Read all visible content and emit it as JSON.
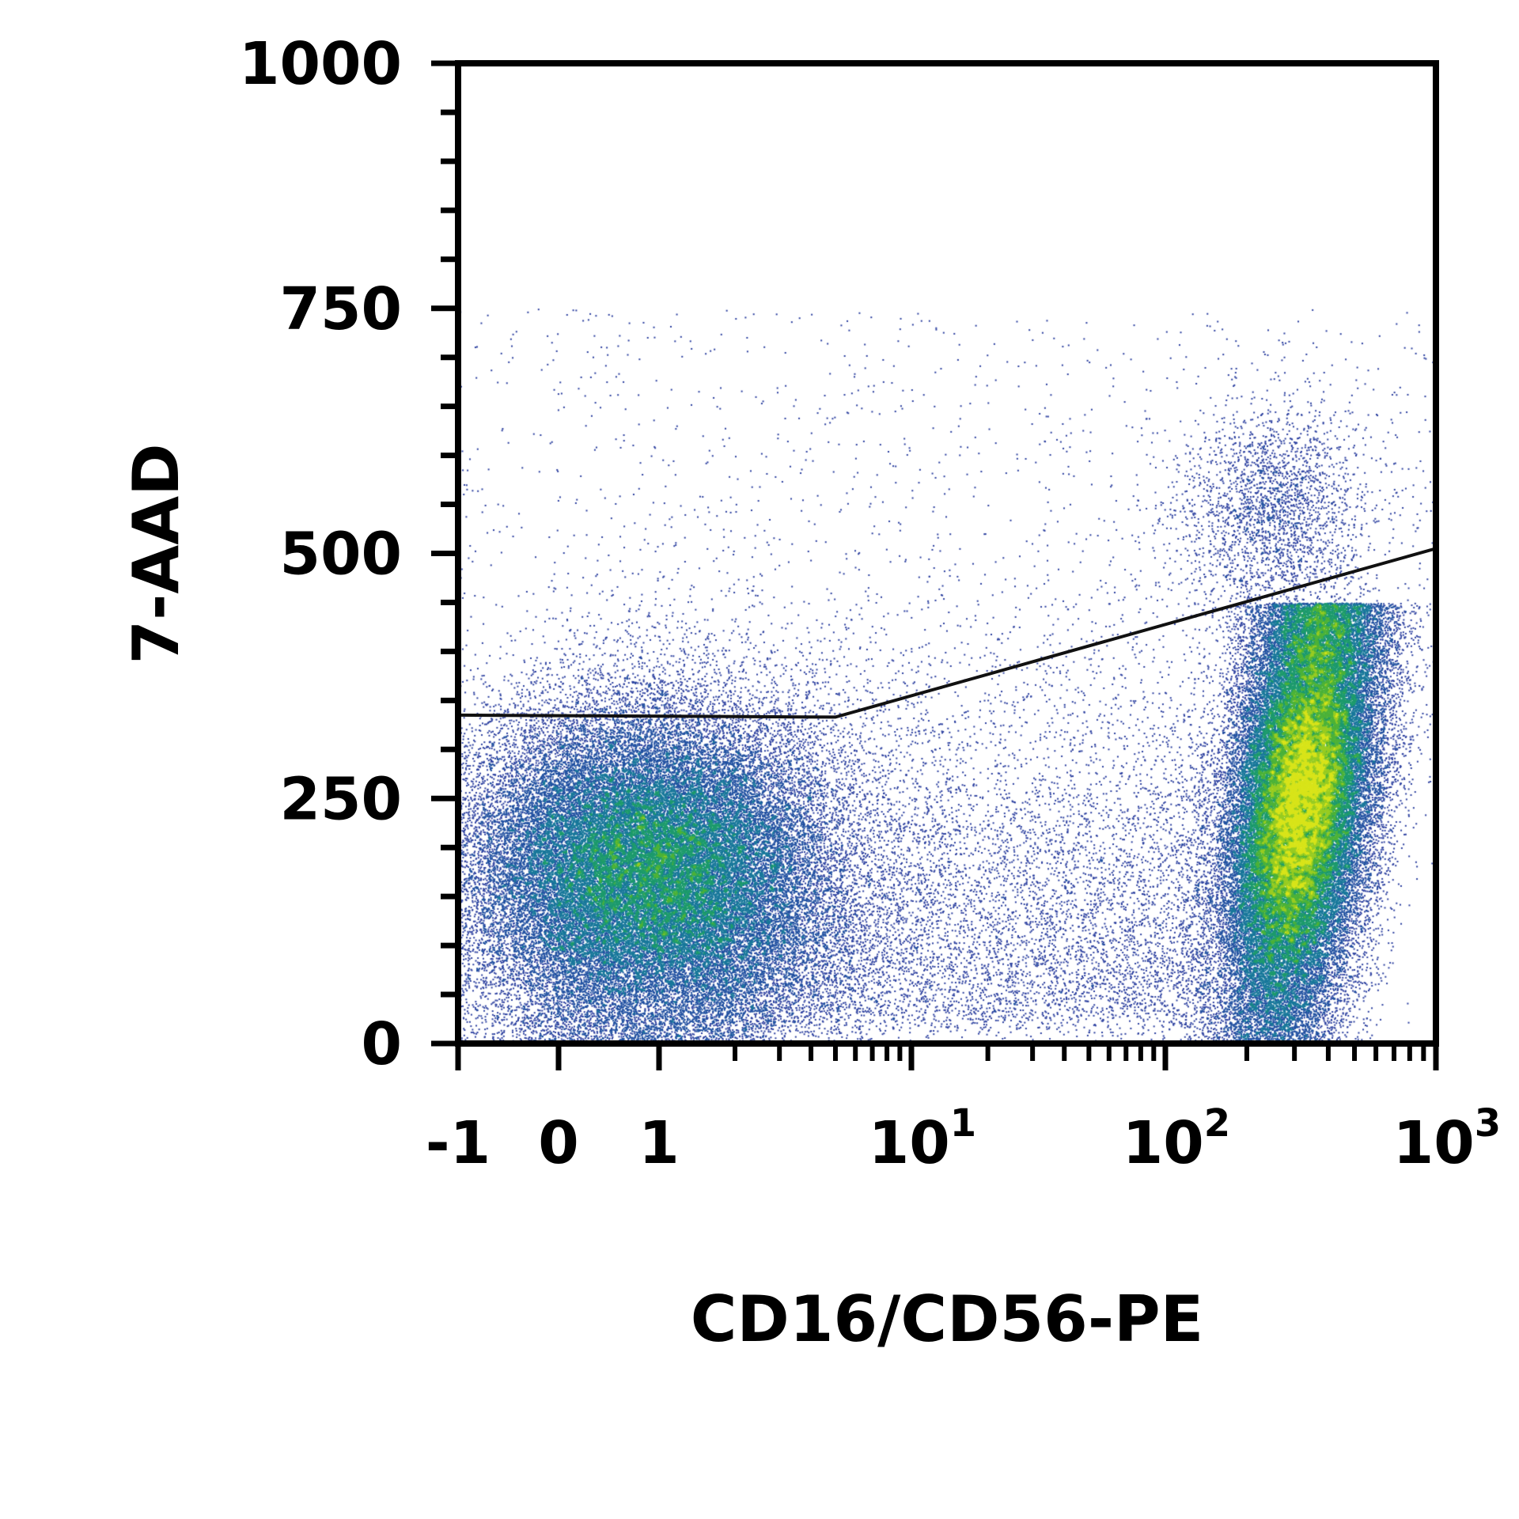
{
  "chart_data": {
    "type": "scatter",
    "subtype": "flow-cytometry density dot plot",
    "title": "",
    "xlabel": "CD16/CD56-PE",
    "ylabel": "7-AAD",
    "x_scale": "biexponential (linear near zero, log above)",
    "xlim": [
      -1,
      1000
    ],
    "ylim": [
      0,
      1000
    ],
    "grid": false,
    "legend": "none",
    "x_ticks": [
      {
        "value": -1,
        "base": "-1",
        "exp": ""
      },
      {
        "value": 0,
        "base": "0",
        "exp": ""
      },
      {
        "value": 1,
        "base": "1",
        "exp": ""
      },
      {
        "value": 10,
        "base": "10",
        "exp": "1"
      },
      {
        "value": 100,
        "base": "10",
        "exp": "2"
      },
      {
        "value": 1000,
        "base": "10",
        "exp": "3"
      }
    ],
    "y_ticks": [
      {
        "value": 0,
        "label": "0"
      },
      {
        "value": 250,
        "label": "250"
      },
      {
        "value": 500,
        "label": "500"
      },
      {
        "value": 750,
        "label": "750"
      },
      {
        "value": 1000,
        "label": "1000"
      }
    ],
    "gate": {
      "x": [
        -1,
        5,
        1000
      ],
      "y": [
        335,
        333,
        505
      ]
    },
    "populations": [
      {
        "x_center": 1.1,
        "y_center": 175,
        "y_min": 0,
        "y_max": 330,
        "density": "high"
      },
      {
        "x_center": 300,
        "y_center": 250,
        "y_min": 0,
        "y_max": 440,
        "density": "very high"
      },
      {
        "x_center": 250,
        "y_center": 540,
        "y_min": 440,
        "y_max": 700,
        "density": "low"
      }
    ],
    "colors": {
      "low_density": "#2a3f9e",
      "mid_density": "#1f9a6a",
      "high_density": "#cfe21a",
      "gate_line": "#111111",
      "axes": "#000000"
    }
  }
}
